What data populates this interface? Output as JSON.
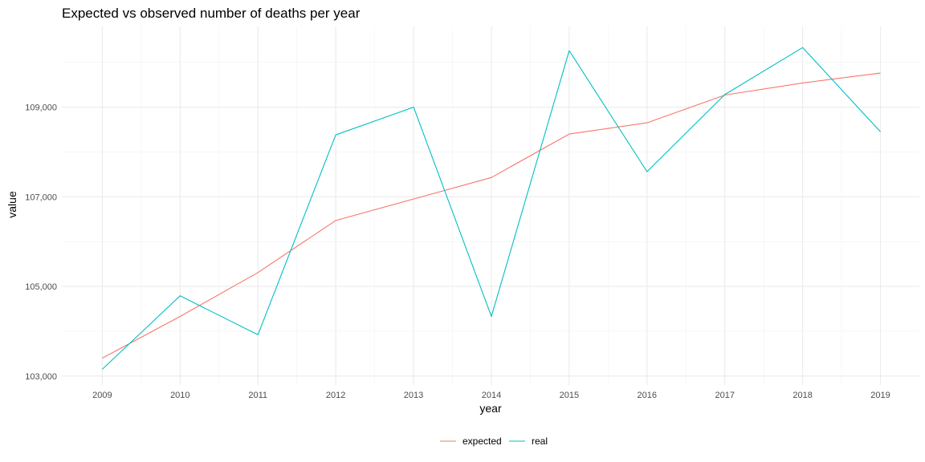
{
  "chart_data": {
    "type": "line",
    "title": "Expected vs observed number of deaths per year",
    "xlabel": "year",
    "ylabel": "value",
    "x": [
      2009,
      2010,
      2011,
      2012,
      2013,
      2014,
      2015,
      2016,
      2017,
      2018,
      2019
    ],
    "x_ticks": [
      "2009",
      "2010",
      "2011",
      "2012",
      "2013",
      "2014",
      "2015",
      "2016",
      "2017",
      "2018",
      "2019"
    ],
    "y_ticks": [
      "103,000",
      "105,000",
      "107,000",
      "109,000"
    ],
    "y_tick_values": [
      103000,
      105000,
      107000,
      109000
    ],
    "ylim": [
      102800,
      110800
    ],
    "grid": true,
    "legend_position": "bottom",
    "series": [
      {
        "name": "expected",
        "color": "#F8766D",
        "values": [
          103400,
          104330,
          105310,
          106470,
          106950,
          107430,
          108400,
          108650,
          109270,
          109540,
          109760
        ]
      },
      {
        "name": "real",
        "color": "#00BFC4",
        "values": [
          103150,
          104790,
          103920,
          108380,
          109000,
          104330,
          110260,
          107560,
          109280,
          110330,
          108450
        ]
      }
    ]
  }
}
